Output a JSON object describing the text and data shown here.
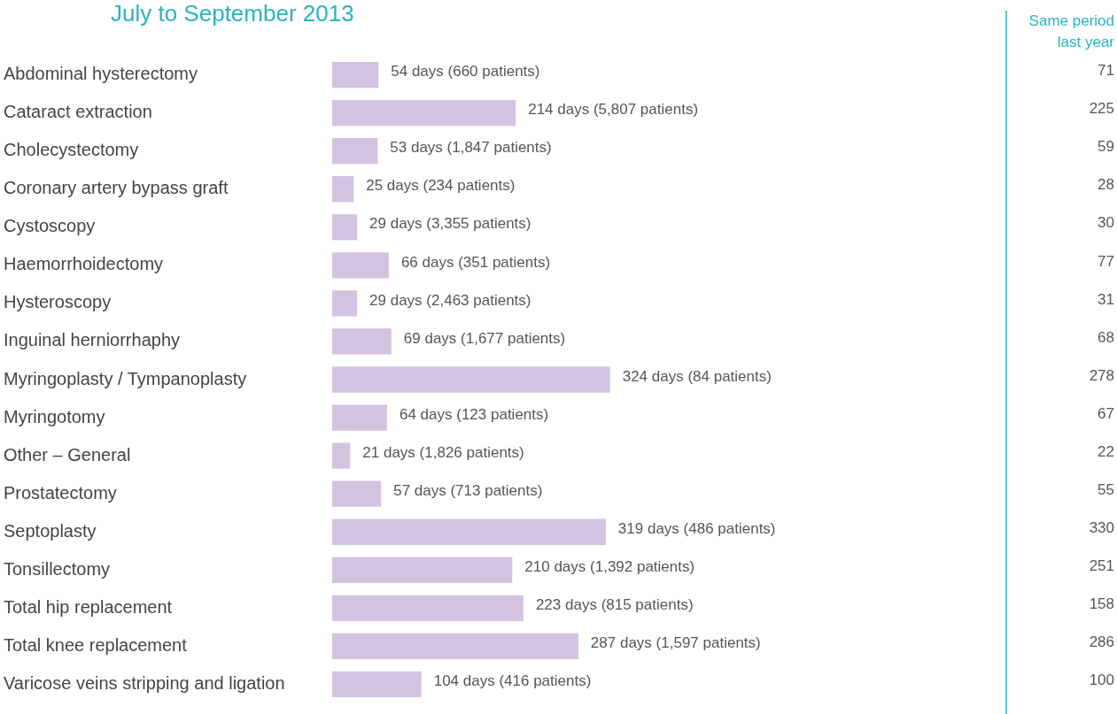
{
  "chart_data": {
    "type": "bar",
    "orientation": "horizontal",
    "title": "July to September 2013",
    "categories": [
      "Abdominal hysterectomy",
      "Cataract extraction",
      "Cholecystectomy",
      "Coronary artery bypass graft",
      "Cystoscopy",
      "Haemorrhoidectomy",
      "Hysteroscopy",
      "Inguinal herniorrhaphy",
      "Myringoplasty / Tympanoplasty",
      "Myringotomy",
      "Other – General",
      "Prostatectomy",
      "Septoplasty",
      "Tonsillectomy",
      "Total hip replacement",
      "Total knee replacement",
      "Varicose veins stripping and ligation"
    ],
    "values": [
      54,
      214,
      53,
      25,
      29,
      66,
      29,
      69,
      324,
      64,
      21,
      57,
      319,
      210,
      223,
      287,
      104
    ],
    "value_labels": [
      "54 days (660 patients)",
      "214 days (5,807 patients)",
      "53 days (1,847 patients)",
      "25 days (234 patients)",
      "29 days (3,355 patients)",
      "66 days (351 patients)",
      "29 days (2,463 patients)",
      "69 days (1,677 patients)",
      "324 days (84 patients)",
      "64 days (123 patients)",
      "21 days (1,826 patients)",
      "57 days (713 patients)",
      "319 days (486 patients)",
      "210 days (1,392 patients)",
      "223 days (815 patients)",
      "287 days (1,597 patients)",
      "104 days (416 patients)"
    ],
    "color": "#d3c3e0",
    "xlim": [
      0,
      786
    ],
    "tick_labels": "y",
    "legend": false,
    "annotations": [
      "Same period last year",
      "71",
      "225",
      "59",
      "28",
      "30",
      "77",
      "31",
      "68",
      "278",
      "67",
      "22",
      "55",
      "330",
      "251",
      "158",
      "286",
      "100"
    ]
  }
}
